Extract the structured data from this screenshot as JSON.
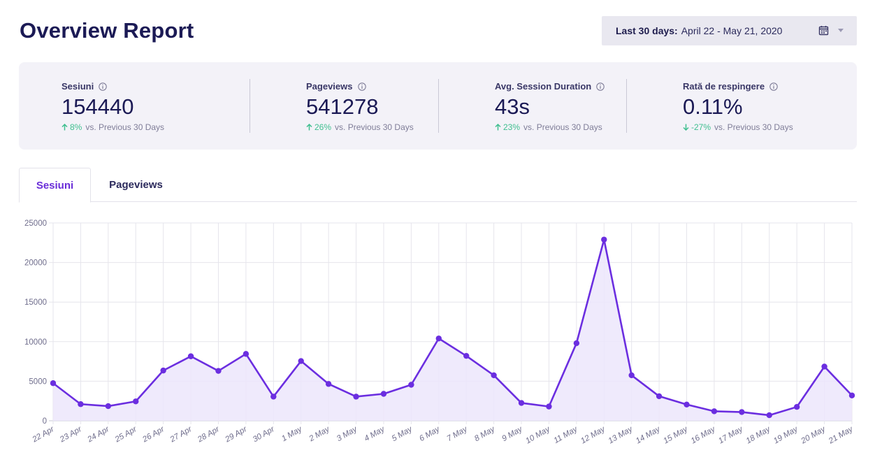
{
  "header": {
    "title": "Overview Report",
    "date_range_label": "Last 30 days:",
    "date_range_value": "April 22 - May 21, 2020",
    "calendar_icon": "calendar-icon",
    "caret_icon": "chevron-down-icon"
  },
  "stats": [
    {
      "title": "Sesiuni",
      "value": "154440",
      "change": "8%",
      "direction": "up",
      "compare": "vs. Previous 30 Days"
    },
    {
      "title": "Pageviews",
      "value": "541278",
      "change": "26%",
      "direction": "up",
      "compare": "vs. Previous 30 Days"
    },
    {
      "title": "Avg. Session Duration",
      "value": "43s",
      "change": "23%",
      "direction": "up",
      "compare": "vs. Previous 30 Days"
    },
    {
      "title": "Rată de respingere",
      "value": "0.11%",
      "change": "-27%",
      "direction": "down",
      "compare": "vs. Previous 30 Days"
    }
  ],
  "tabs": [
    {
      "label": "Sesiuni",
      "active": true
    },
    {
      "label": "Pageviews",
      "active": false
    }
  ],
  "colors": {
    "accent": "#6a2ed8",
    "line": "#6b2ee0",
    "area": "#ece6fb",
    "positive": "#3fbf8f",
    "grid": "#e6e5ec"
  },
  "chart_data": {
    "type": "area",
    "x": [
      "22 Apr",
      "23 Apr",
      "24 Apr",
      "25 Apr",
      "26 Apr",
      "27 Apr",
      "28 Apr",
      "29 Apr",
      "30 Apr",
      "1 May",
      "2 May",
      "3 May",
      "4 May",
      "5 May",
      "6 May",
      "7 May",
      "8 May",
      "9 May",
      "10 May",
      "11 May",
      "12 May",
      "13 May",
      "14 May",
      "15 May",
      "16 May",
      "17 May",
      "18 May",
      "19 May",
      "20 May",
      "21 May"
    ],
    "series": [
      {
        "values": [
          4750,
          2100,
          1850,
          2450,
          6350,
          8150,
          6300,
          8450,
          3050,
          7550,
          4650,
          3050,
          3400,
          4550,
          10400,
          8200,
          5750,
          2250,
          1800,
          9800,
          22900,
          5750,
          3100,
          2050,
          1200,
          1100,
          700,
          1750,
          6850,
          3200
        ]
      }
    ],
    "yticks": [
      "25000",
      "20000",
      "15000",
      "10000",
      "5000",
      "0"
    ],
    "ylim": [
      0,
      25000
    ],
    "grid": true,
    "legend": false
  }
}
